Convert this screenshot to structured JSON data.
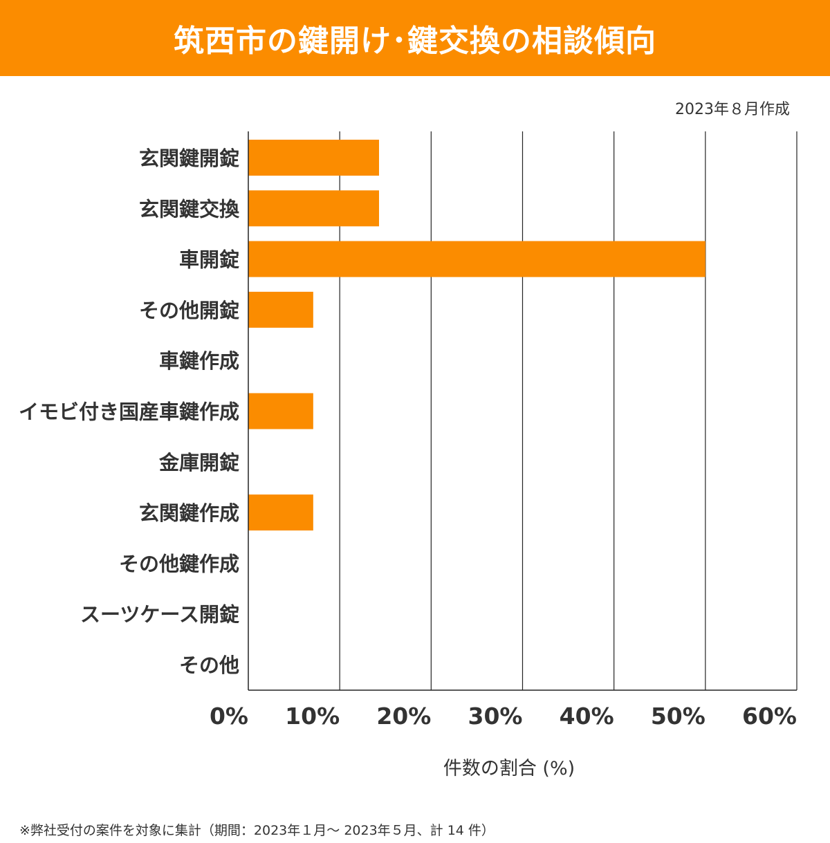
{
  "header": {
    "title": "筑西市の鍵開け･鍵交換の相談傾向"
  },
  "date_note": "2023年８月作成",
  "footnote": "※弊社受付の案件を対象に集計（期間：2023年１月～ 2023年５月、計 14 件）",
  "colors": {
    "accent": "#fb8c00",
    "text": "#333333",
    "grid": "#222222"
  },
  "chart_data": {
    "type": "bar",
    "orientation": "horizontal",
    "categories": [
      "玄関鍵開錠",
      "玄関鍵交換",
      "車開錠",
      "その他開錠",
      "車鍵作成",
      "イモビ付き国産車鍵作成",
      "金庫開錠",
      "玄関鍵作成",
      "その他鍵作成",
      "スーツケース開錠",
      "その他"
    ],
    "values": [
      14.3,
      14.3,
      50.0,
      7.1,
      0,
      7.1,
      0,
      7.1,
      0,
      0,
      0
    ],
    "xlim": [
      0,
      60
    ],
    "x_ticks": [
      0,
      10,
      20,
      30,
      40,
      50,
      60
    ],
    "tick_labels": [
      "0%",
      "10%",
      "20%",
      "30%",
      "40%",
      "50%",
      "60%"
    ],
    "xlabel": "件数の割合 (%)",
    "grid": true
  }
}
